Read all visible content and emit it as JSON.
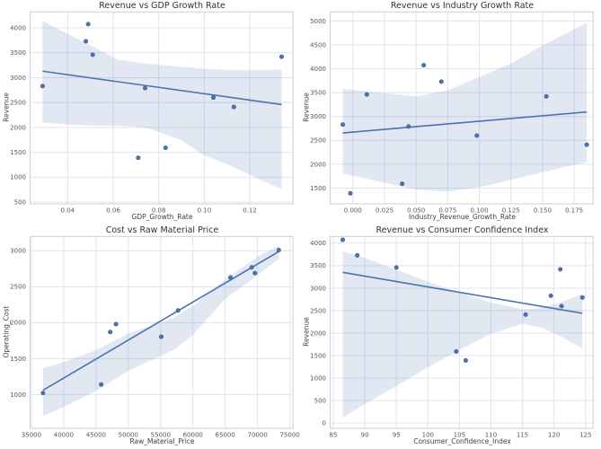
{
  "figure": {
    "background": "#ffffff",
    "rows": 2,
    "cols": 2
  },
  "style": {
    "accent": "#4c72b0",
    "point_fill": "#4c72b0",
    "point_stroke": "#3d5c91",
    "line_color": "#4c72b0",
    "band_color": "#4c72b0",
    "band_opacity": 0.16,
    "grid_color": "#e0e4ee",
    "spine_color": "#c9cfdb",
    "tick_color": "#53565e",
    "title_color": "#2f323a",
    "label_color": "#3c4048"
  },
  "chart_data": [
    {
      "type": "scatter",
      "title": "Revenue vs GDP Growth Rate",
      "xlabel": "GDP_Growth_Rate",
      "ylabel": "Revenue",
      "x": [
        0.029,
        0.049,
        0.048,
        0.051,
        0.071,
        0.074,
        0.083,
        0.104,
        0.113,
        0.134
      ],
      "y": [
        2830,
        4075,
        3730,
        3460,
        1390,
        2790,
        1590,
        2600,
        2410,
        3420
      ],
      "trend": {
        "x": [
          0.029,
          0.134
        ],
        "y": [
          3130,
          2460
        ]
      },
      "band": {
        "x": [
          0.029,
          0.04,
          0.05,
          0.062,
          0.075,
          0.09,
          0.1,
          0.11,
          0.12,
          0.128,
          0.134
        ],
        "upper": [
          4140,
          3880,
          3650,
          3360,
          3280,
          3220,
          3180,
          3155,
          3150,
          3155,
          3165
        ],
        "lower": [
          2100,
          2060,
          2040,
          2040,
          1990,
          1740,
          1440,
          1260,
          1050,
          880,
          760
        ]
      },
      "xlim": [
        0.0235,
        0.139
      ],
      "ylim": [
        465,
        4320
      ],
      "xticks": {
        "values": [
          0.04,
          0.06,
          0.08,
          0.1,
          0.12
        ],
        "labels": [
          "0.04",
          "0.06",
          "0.08",
          "0.10",
          "0.12"
        ]
      },
      "yticks": {
        "values": [
          500,
          1000,
          1500,
          2000,
          2500,
          3000,
          3500,
          4000
        ],
        "labels": [
          "500",
          "1000",
          "1500",
          "2000",
          "2500",
          "3000",
          "3500",
          "4000"
        ]
      },
      "grid": true,
      "legend": null
    },
    {
      "type": "scatter",
      "title": "Revenue vs Industry Growth Rate",
      "xlabel": "Industry_Revenue_Growth_Rate",
      "ylabel": "Revenue",
      "x": [
        -0.008,
        0.056,
        0.07,
        0.011,
        -0.002,
        0.044,
        0.039,
        0.098,
        0.185,
        0.153
      ],
      "y": [
        2830,
        4075,
        3730,
        3460,
        1390,
        2790,
        1590,
        2600,
        2410,
        3420
      ],
      "trend": {
        "x": [
          -0.008,
          0.185
        ],
        "y": [
          2655,
          3095
        ]
      },
      "band": {
        "x": [
          -0.008,
          0.025,
          0.05,
          0.075,
          0.1,
          0.125,
          0.15,
          0.185
        ],
        "upper": [
          3580,
          3490,
          3420,
          3550,
          3830,
          4110,
          4490,
          4960
        ],
        "lower": [
          1810,
          1610,
          1470,
          1430,
          1520,
          1670,
          1830,
          2050
        ]
      },
      "xlim": [
        -0.018,
        0.19
      ],
      "ylim": [
        1170,
        5190
      ],
      "xticks": {
        "values": [
          0.0,
          0.025,
          0.05,
          0.075,
          0.1,
          0.125,
          0.15,
          0.175
        ],
        "labels": [
          "0.000",
          "0.025",
          "0.050",
          "0.075",
          "0.100",
          "0.125",
          "0.150",
          "0.175"
        ]
      },
      "yticks": {
        "values": [
          1500,
          2000,
          2500,
          3000,
          3500,
          4000,
          4500,
          5000
        ],
        "labels": [
          "1500",
          "2000",
          "2500",
          "3000",
          "3500",
          "4000",
          "4500",
          "5000"
        ]
      },
      "grid": true,
      "legend": null
    },
    {
      "type": "scatter",
      "title": "Cost vs Raw Material Price",
      "xlabel": "Raw_Material_Price",
      "ylabel": "Operating_Cost",
      "x": [
        36800,
        45800,
        47200,
        48100,
        55100,
        57700,
        65800,
        69100,
        69600,
        73300
      ],
      "y": [
        1020,
        1140,
        1870,
        1980,
        1805,
        2170,
        2630,
        2770,
        2690,
        3010
      ],
      "trend": {
        "x": [
          36800,
          73300
        ],
        "y": [
          1060,
          2990
        ]
      },
      "band": {
        "x": [
          36800,
          40000,
          45000,
          50000,
          55000,
          57000,
          60000,
          65000,
          70000,
          73300
        ],
        "upper": [
          1370,
          1450,
          1620,
          1850,
          2000,
          2070,
          2230,
          2600,
          2915,
          3075
        ],
        "lower": [
          700,
          830,
          1050,
          1330,
          1540,
          1620,
          1830,
          2330,
          2660,
          2890
        ]
      },
      "xlim": [
        34800,
        75500
      ],
      "ylim": [
        530,
        3200
      ],
      "xticks": {
        "values": [
          35000,
          40000,
          45000,
          50000,
          55000,
          60000,
          65000,
          70000,
          75000
        ],
        "labels": [
          "35000",
          "40000",
          "45000",
          "50000",
          "55000",
          "60000",
          "65000",
          "70000",
          "75000"
        ]
      },
      "yticks": {
        "values": [
          1000,
          1500,
          2000,
          2500,
          3000
        ],
        "labels": [
          "1000",
          "1500",
          "2000",
          "2500",
          "3000"
        ]
      },
      "grid": true,
      "legend": null
    },
    {
      "type": "scatter",
      "title": "Revenue vs Consumer Confidence Index",
      "xlabel": "Consumer_Confidence_Index",
      "ylabel": "Revenue",
      "x": [
        119.5,
        86.5,
        88.8,
        95.0,
        106.0,
        124.5,
        104.5,
        121.2,
        115.5,
        121.0
      ],
      "y": [
        2830,
        4075,
        3730,
        3460,
        1390,
        2790,
        1590,
        2600,
        2410,
        3420
      ],
      "trend": {
        "x": [
          86.5,
          124.5
        ],
        "y": [
          3350,
          2440
        ]
      },
      "band": {
        "x": [
          86.5,
          90,
          95,
          100,
          105,
          110,
          115,
          118,
          121,
          124.5
        ],
        "upper": [
          3820,
          3670,
          3410,
          3140,
          2910,
          2680,
          2530,
          2560,
          2680,
          2870
        ],
        "lower": [
          120,
          420,
          820,
          1240,
          1620,
          1980,
          2210,
          2120,
          1930,
          1660
        ]
      },
      "xlim": [
        84.5,
        126.2
      ],
      "ylim": [
        -120,
        4150
      ],
      "xticks": {
        "values": [
          85,
          90,
          95,
          100,
          105,
          110,
          115,
          120,
          125
        ],
        "labels": [
          "85",
          "90",
          "95",
          "100",
          "105",
          "110",
          "115",
          "120",
          "125"
        ]
      },
      "yticks": {
        "values": [
          0,
          500,
          1000,
          1500,
          2000,
          2500,
          3000,
          3500,
          4000
        ],
        "labels": [
          "0",
          "500",
          "1000",
          "1500",
          "2000",
          "2500",
          "3000",
          "3500",
          "4000"
        ]
      },
      "grid": true,
      "legend": null
    }
  ]
}
